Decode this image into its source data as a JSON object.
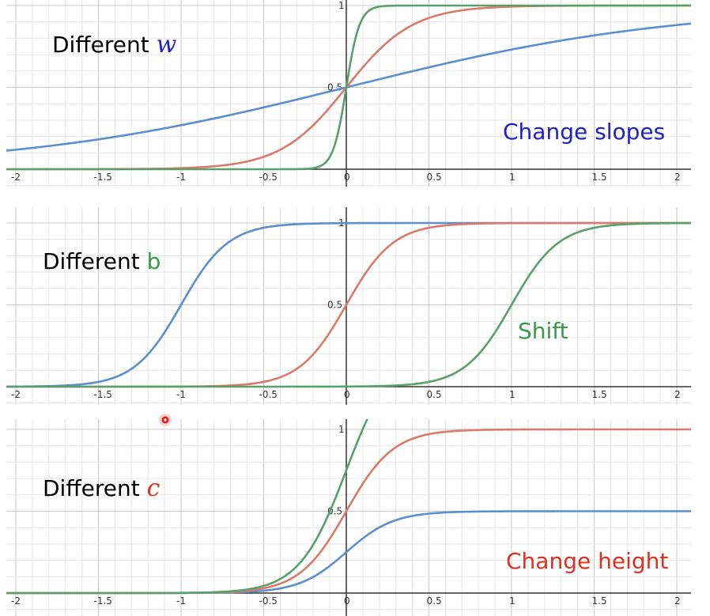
{
  "chart_data": [
    {
      "type": "line",
      "title_parts": [
        {
          "text": "Different ",
          "color": "#000000",
          "italic": false
        },
        {
          "text": "w",
          "color": "#1f20c8",
          "italic": true
        }
      ],
      "annotation": {
        "text": "Change slopes",
        "color": "#1f20c8"
      },
      "xlim": [
        -2.05,
        2.1
      ],
      "ylim": [
        -0.03,
        1.03
      ],
      "x_ticks": [
        -2,
        -1.5,
        -1,
        -0.5,
        0,
        0.5,
        1,
        1.5,
        2
      ],
      "x_tick_labels": [
        "-2",
        "-1.5",
        "-1",
        "-0.5",
        "0",
        "0.5",
        "1",
        "1.5",
        "2"
      ],
      "y_ticks": [
        0.5,
        1
      ],
      "y_tick_labels": [
        "0.5",
        "1"
      ],
      "grid": true,
      "series": [
        {
          "color": "#5b8fce",
          "formula": "sigmoid",
          "w": 1,
          "b": 0,
          "c": 1
        },
        {
          "color": "#d97a6a",
          "formula": "sigmoid",
          "w": 5,
          "b": 0,
          "c": 1
        },
        {
          "color": "#5aa06a",
          "formula": "sigmoid",
          "w": 25,
          "b": 0,
          "c": 1
        }
      ]
    },
    {
      "type": "line",
      "title_parts": [
        {
          "text": "Different ",
          "color": "#000000",
          "italic": false
        },
        {
          "text": "b",
          "color": "#3a9a4a",
          "italic": false
        }
      ],
      "annotation": {
        "text": "Shift",
        "color": "#3a9a4a"
      },
      "xlim": [
        -2.05,
        2.1
      ],
      "ylim": [
        -0.03,
        1.03
      ],
      "x_ticks": [
        -2,
        -1.5,
        -1,
        -0.5,
        0,
        0.5,
        1,
        1.5,
        2
      ],
      "x_tick_labels": [
        "-2",
        "-1.5",
        "-1",
        "-0.5",
        "0",
        "0.5",
        "1",
        "1.5",
        "2"
      ],
      "y_ticks": [
        0.5,
        1
      ],
      "y_tick_labels": [
        "0.5",
        "1"
      ],
      "grid": true,
      "series": [
        {
          "color": "#5b8fce",
          "formula": "sigmoid",
          "w": 7,
          "b": 7,
          "c": 1
        },
        {
          "color": "#d97a6a",
          "formula": "sigmoid",
          "w": 7,
          "b": 0,
          "c": 1
        },
        {
          "color": "#5aa06a",
          "formula": "sigmoid",
          "w": 7,
          "b": -7,
          "c": 1
        }
      ]
    },
    {
      "type": "line",
      "title_parts": [
        {
          "text": "Different ",
          "color": "#000000",
          "italic": false
        },
        {
          "text": "c",
          "color": "#e03020",
          "italic": true
        }
      ],
      "annotation": {
        "text": "Change height",
        "color": "#e03020"
      },
      "xlim": [
        -2.05,
        2.1
      ],
      "ylim": [
        -0.03,
        1.03
      ],
      "x_ticks": [
        -2,
        -1.5,
        -1,
        -0.5,
        0,
        0.5,
        1,
        1.5,
        2
      ],
      "x_tick_labels": [
        "-2",
        "-1.5",
        "-1",
        "-0.5",
        "0",
        "0.5",
        "1",
        "1.5",
        "2"
      ],
      "y_ticks": [
        0.5,
        1
      ],
      "y_tick_labels": [
        "0.5",
        "1"
      ],
      "grid": true,
      "series": [
        {
          "color": "#5b8fce",
          "formula": "sigmoid",
          "w": 7,
          "b": 0,
          "c": 0.5
        },
        {
          "color": "#d97a6a",
          "formula": "sigmoid",
          "w": 7,
          "b": 0,
          "c": 1
        },
        {
          "color": "#5aa06a",
          "formula": "sigmoid",
          "w": 7,
          "b": 0,
          "c": 1.5
        }
      ]
    }
  ],
  "colors": {
    "grid_major": "#c8c8c8",
    "grid_minor": "#e6e6e6",
    "axis": "#333333",
    "cursor_marker": "#e02020"
  }
}
